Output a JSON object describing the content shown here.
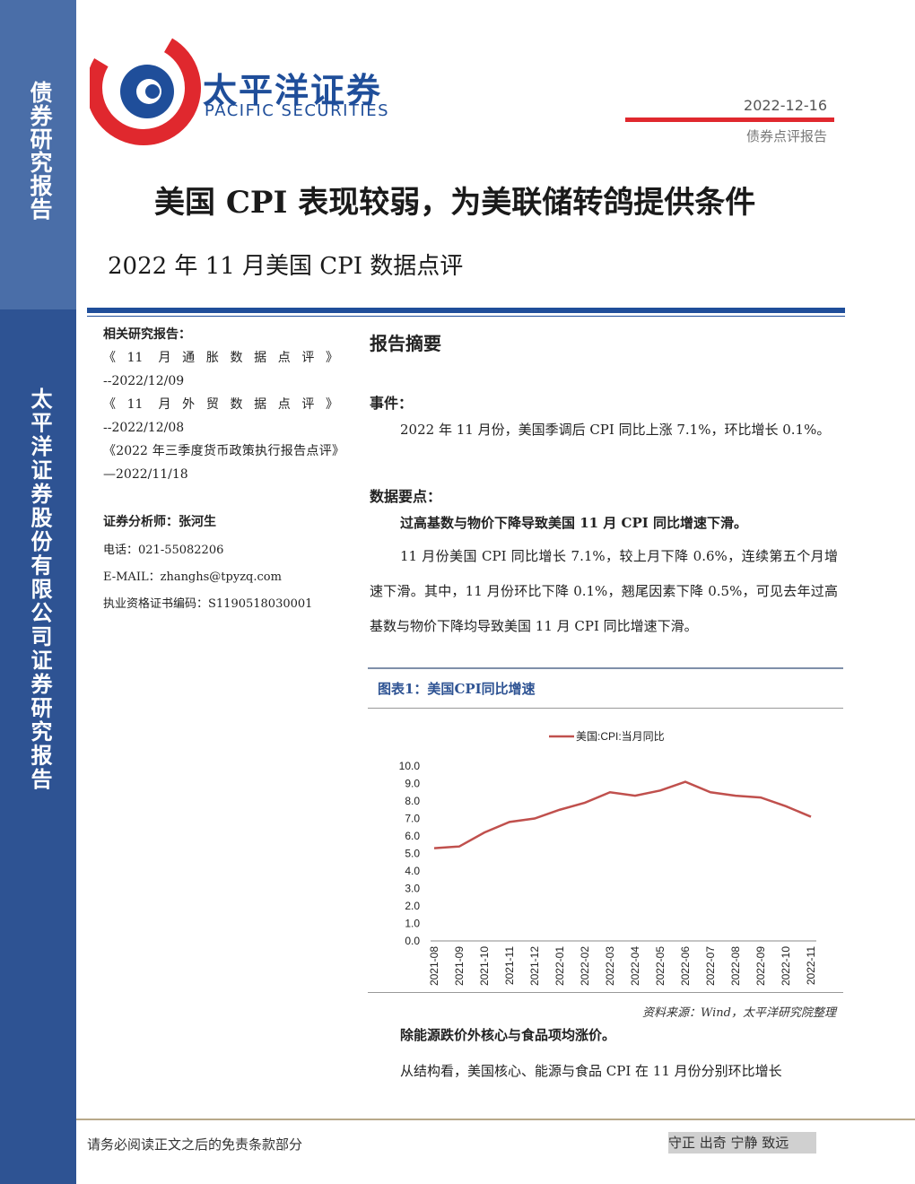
{
  "logo": {
    "name_cn": "太平洋证券",
    "name_en": "PACIFIC SECURITIES"
  },
  "header": {
    "date": "2022-12-16",
    "report_type": "债券点评报告",
    "title": "美国 CPI 表现较弱，为美联储转鸽提供条件",
    "subtitle": "2022 年 11 月美国 CPI 数据点评"
  },
  "sidebar": {
    "top": "债券研究报告",
    "bottom": "太平洋证券股份有限公司证券研究报告"
  },
  "related": {
    "heading": "相关研究报告：",
    "items": [
      {
        "title": "《11 月通胀数据点评》",
        "date": "--2022/12/09"
      },
      {
        "title": "《11 月外贸数据点评》",
        "date": "--2022/12/08"
      },
      {
        "title": "《2022 年三季度货币政策执行报告点评》—2022/11/18"
      }
    ]
  },
  "analyst": {
    "heading": "证券分析师：张河生",
    "phone": "电话：021-55082206",
    "email": "E-MAIL：zhanghs@tpyzq.com",
    "license": "执业资格证书编码：S1190518030001"
  },
  "summary": {
    "heading": "报告摘要",
    "event_heading": "事件：",
    "event": "2022 年 11 月份，美国季调后 CPI 同比上涨 7.1%，环比增长 0.1%。",
    "points_heading": "数据要点：",
    "point1": "过高基数与物价下降导致美国 11 月 CPI 同比增速下滑。",
    "para1": "11 月份美国 CPI 同比增长 7.1%，较上月下降 0.6%，连续第五个月增速下滑。其中，11 月份环比下降 0.1%，翘尾因素下降 0.5%，可见去年过高基数与物价下降均导致美国 11 月 CPI 同比增速下滑。",
    "figure_title": "图表1：美国CPI同比增速",
    "source": "资料来源：Wind，太平洋研究院整理",
    "point2": "除能源跌价外核心与食品项均涨价。",
    "para2": "从结构看，美国核心、能源与食品 CPI 在 11 月份分别环比增长"
  },
  "chart_data": {
    "type": "line",
    "categories": [
      "2021-08",
      "2021-09",
      "2021-10",
      "2021-11",
      "2021-12",
      "2022-01",
      "2022-02",
      "2022-03",
      "2022-04",
      "2022-05",
      "2022-06",
      "2022-07",
      "2022-08",
      "2022-09",
      "2022-10",
      "2022-11"
    ],
    "series": [
      {
        "name": "美国:CPI:当月同比",
        "color": "#c0504d",
        "values": [
          5.3,
          5.4,
          6.2,
          6.8,
          7.0,
          7.5,
          7.9,
          8.5,
          8.3,
          8.6,
          9.1,
          8.5,
          8.3,
          8.2,
          7.7,
          7.1
        ]
      }
    ],
    "ylim": [
      0,
      10
    ],
    "yticks": [
      {
        "value": 0,
        "label": "0.0"
      },
      {
        "value": 1,
        "label": "1.0"
      },
      {
        "value": 2,
        "label": "2.0"
      },
      {
        "value": 3,
        "label": "3.0"
      },
      {
        "value": 4,
        "label": "4.0"
      },
      {
        "value": 5,
        "label": "5.0"
      },
      {
        "value": 6,
        "label": "6.0"
      },
      {
        "value": 7,
        "label": "7.0"
      },
      {
        "value": 8,
        "label": "8.0"
      },
      {
        "value": 9,
        "label": "9.0"
      },
      {
        "value": 10,
        "label": "10.0"
      }
    ],
    "grid": false,
    "legend": "top"
  },
  "footer": {
    "disclaimer": "请务必阅读正文之后的免责条款部分",
    "motto": "守正 出奇 宁静 致远"
  }
}
